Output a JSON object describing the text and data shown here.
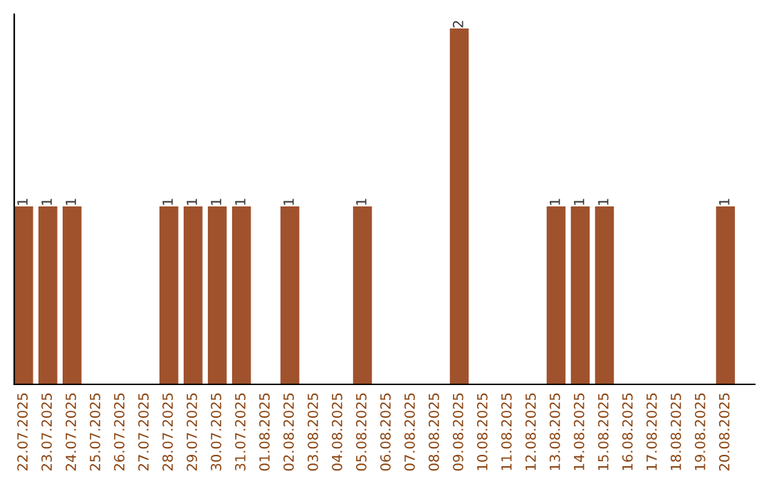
{
  "chart_data": {
    "type": "bar",
    "categories": [
      "22.07.2025",
      "23.07.2025",
      "24.07.2025",
      "25.07.2025",
      "26.07.2025",
      "27.07.2025",
      "28.07.2025",
      "29.07.2025",
      "30.07.2025",
      "31.07.2025",
      "01.08.2025",
      "02.08.2025",
      "03.08.2025",
      "04.08.2025",
      "05.08.2025",
      "06.08.2025",
      "07.08.2025",
      "08.08.2025",
      "09.08.2025",
      "10.08.2025",
      "11.08.2025",
      "12.08.2025",
      "13.08.2025",
      "14.08.2025",
      "15.08.2025",
      "16.08.2025",
      "17.08.2025",
      "18.08.2025",
      "19.08.2025",
      "20.08.2025"
    ],
    "values": [
      1,
      1,
      1,
      0,
      0,
      0,
      1,
      1,
      1,
      1,
      0,
      1,
      0,
      0,
      1,
      0,
      0,
      0,
      2,
      0,
      0,
      0,
      1,
      1,
      1,
      0,
      0,
      0,
      0,
      1
    ],
    "value_labels": [
      "1",
      "1",
      "1",
      null,
      null,
      null,
      "1",
      "1",
      "1",
      "1",
      null,
      "1",
      null,
      null,
      "1",
      null,
      null,
      null,
      "2",
      null,
      null,
      null,
      "1",
      "1",
      "1",
      null,
      null,
      null,
      null,
      "1"
    ],
    "color": "#a0522d",
    "ylim": [
      0,
      2.08
    ],
    "tick_labels": "x",
    "grid": false,
    "legend": false
  }
}
